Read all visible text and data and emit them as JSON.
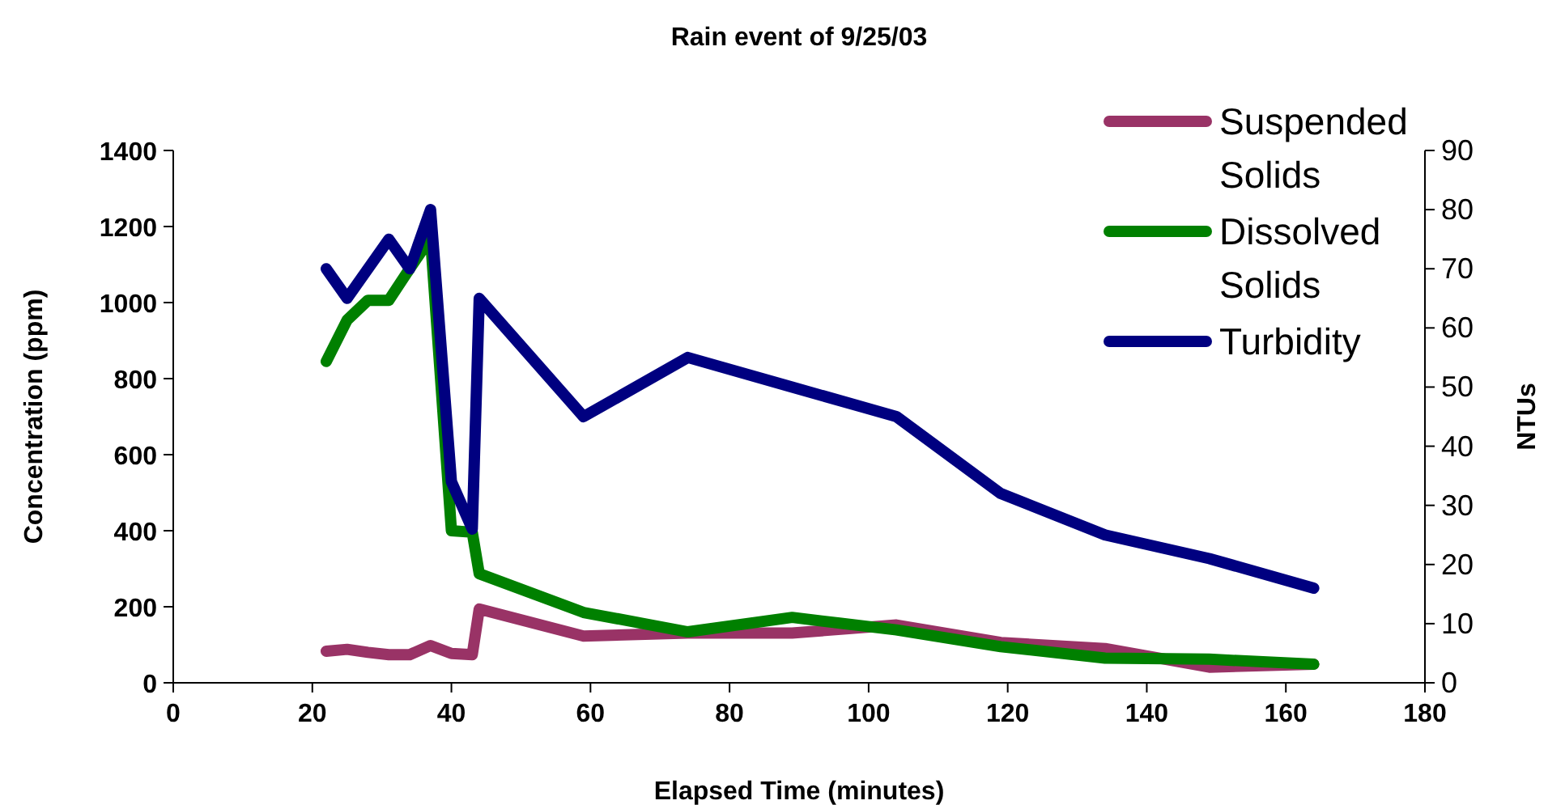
{
  "chart_data": {
    "type": "line",
    "title": "Rain event of 9/25/03",
    "xlabel": "Elapsed Time (minutes)",
    "ylabel": "Concentration (ppm)",
    "y2label": "NTUs",
    "xlim": [
      0,
      180
    ],
    "xticks": [
      0,
      20,
      40,
      60,
      80,
      100,
      120,
      140,
      160,
      180
    ],
    "ylim": [
      0,
      1400
    ],
    "yticks": [
      0,
      200,
      400,
      600,
      800,
      1000,
      1200,
      1400
    ],
    "y2lim": [
      0,
      90
    ],
    "y2ticks": [
      0,
      10,
      20,
      30,
      40,
      50,
      60,
      70,
      80,
      90
    ],
    "grid": false,
    "legend": "top right",
    "marker": "none",
    "line_style": "solid",
    "series": [
      {
        "name": "Suspended Solids",
        "color": "#993366",
        "x": [
          22,
          25,
          28,
          31,
          34,
          37,
          40,
          43,
          44,
          59,
          74,
          89,
          104,
          119,
          134,
          149,
          164
        ],
        "values": [
          83,
          88,
          80,
          74,
          74,
          98,
          77,
          74,
          194,
          123,
          131,
          131,
          152,
          106,
          90,
          41,
          49
        ]
      },
      {
        "name": "Dissolved Solids",
        "color": "#008000",
        "x": [
          22,
          25,
          28,
          31,
          34,
          37,
          40,
          43,
          44,
          59,
          74,
          89,
          104,
          119,
          134,
          149,
          164
        ],
        "values": [
          845,
          954,
          1006,
          1006,
          1089,
          1170,
          400,
          396,
          287,
          185,
          134,
          172,
          139,
          95,
          65,
          62,
          49
        ]
      },
      {
        "name": "Turbidity",
        "color": "#000080",
        "axis": "y2",
        "x": [
          22,
          25,
          31,
          34,
          37,
          40,
          43,
          44,
          59,
          74,
          89,
          104,
          119,
          134,
          149,
          164
        ],
        "values": [
          70,
          65,
          75,
          70,
          80,
          34,
          26,
          65,
          45,
          55,
          50,
          45,
          32,
          25,
          21,
          16
        ]
      }
    ]
  }
}
